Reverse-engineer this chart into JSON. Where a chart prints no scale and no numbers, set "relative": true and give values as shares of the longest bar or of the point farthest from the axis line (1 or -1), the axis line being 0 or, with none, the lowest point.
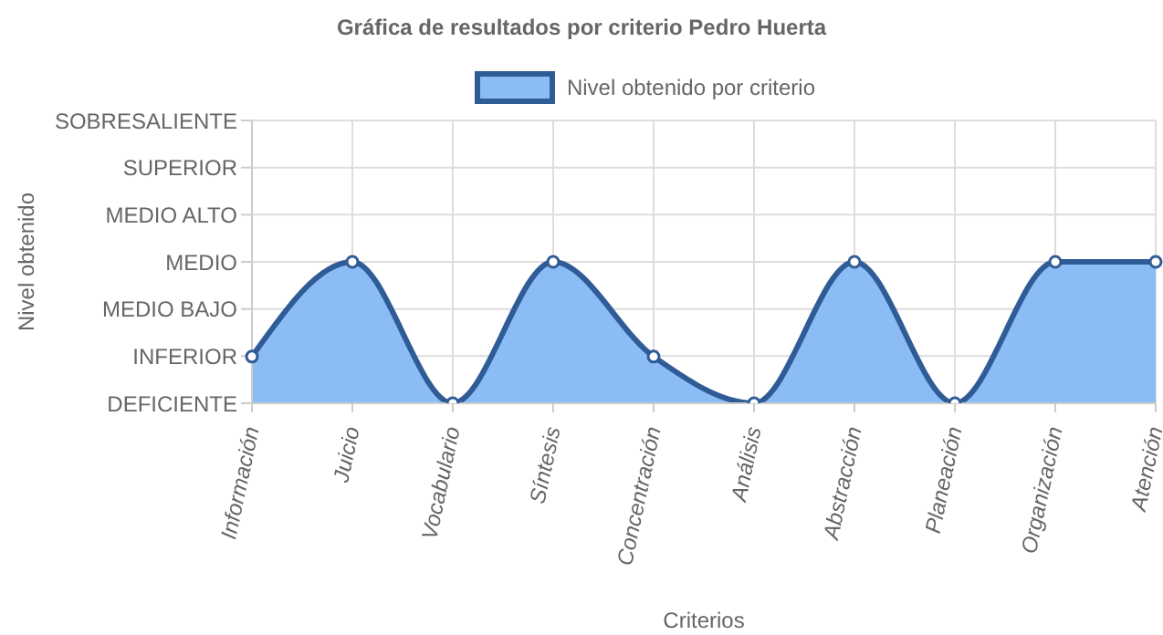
{
  "chart_data": {
    "type": "area",
    "title": "Gráfica de resultados por criterio Pedro Huerta",
    "xlabel": "Criterios",
    "annotations": [
      "Nivel obtenido"
    ],
    "categories": [
      "Información",
      "Juicio",
      "Vocabulario",
      "Síntesis",
      "Concentración",
      "Análisis",
      "Abstracción",
      "Planeación",
      "Organización",
      "Atención"
    ],
    "series": [
      {
        "name": "Nivel obtenido por criterio",
        "color": "#2f5b96",
        "values": [
          0.33,
          1,
          0,
          1,
          0.33,
          0,
          1,
          0,
          1,
          1
        ]
      }
    ],
    "relative": true,
    "y_categories": [
      "SOBRESALIENTE",
      "SUPERIOR",
      "MEDIO ALTO",
      "MEDIO",
      "MEDIO BAJO",
      "INFERIOR",
      "DEFICIENTE"
    ],
    "grid": true,
    "legend": "top",
    "marker": "circle",
    "line_style": "solid"
  }
}
